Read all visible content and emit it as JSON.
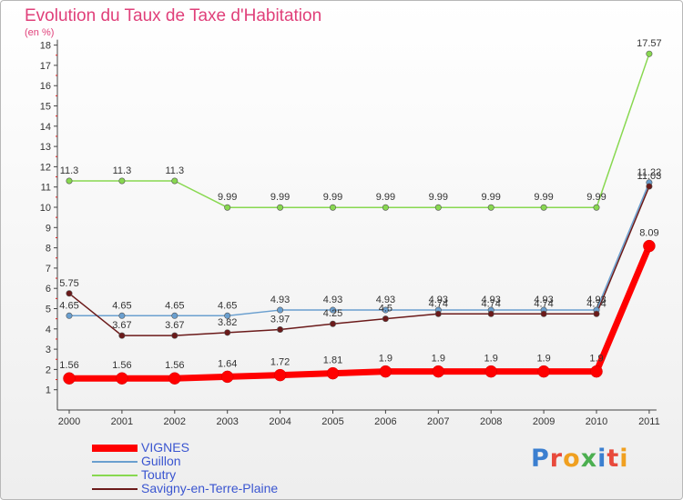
{
  "title": "Evolution du Taux de Taxe d'Habitation",
  "unit_label": "(en %)",
  "logo": {
    "text": "Proxiti",
    "letter_colors": [
      "#3b7fd0",
      "#e84a3c",
      "#f0a020",
      "#4caf50",
      "#3b7fd0",
      "#e84a3c",
      "#f0a020"
    ]
  },
  "chart_data": {
    "type": "line",
    "title": "Evolution du Taux de Taxe d'Habitation",
    "ylabel": "(en %)",
    "xlabel": "",
    "x": [
      "2000",
      "2001",
      "2002",
      "2003",
      "2004",
      "2005",
      "2006",
      "2007",
      "2008",
      "2009",
      "2010",
      "2011"
    ],
    "ylim": [
      0,
      18
    ],
    "yticks": [
      1,
      2,
      3,
      4,
      5,
      6,
      7,
      8,
      9,
      10,
      11,
      12,
      13,
      14,
      15,
      16,
      17,
      18
    ],
    "grid": false,
    "legend_position": "bottom-left",
    "series": [
      {
        "name": "VIGNES",
        "color": "#ff0000",
        "values": [
          1.56,
          1.56,
          1.56,
          1.64,
          1.72,
          1.81,
          1.9,
          1.9,
          1.9,
          1.9,
          1.9,
          8.09
        ],
        "labels": [
          "1.56",
          "1.56",
          "1.56",
          "1.64",
          "1.72",
          "1.81",
          "1.9",
          "1.9",
          "1.9",
          "1.9",
          "1.9",
          "8.09"
        ]
      },
      {
        "name": "Guillon",
        "color": "#6a9fcf",
        "values": [
          4.65,
          4.65,
          4.65,
          4.65,
          4.93,
          4.93,
          4.93,
          4.93,
          4.93,
          4.93,
          4.93,
          11.22
        ],
        "labels": [
          "4.65",
          "4.65",
          "4.65",
          "4.65",
          "4.93",
          "4.93",
          "4.93",
          "4.93",
          "4.93",
          "4.93",
          "4.93",
          "11.22"
        ]
      },
      {
        "name": "Toutry",
        "color": "#88d850",
        "values": [
          11.3,
          11.3,
          11.3,
          9.99,
          9.99,
          9.99,
          9.99,
          9.99,
          9.99,
          9.99,
          9.99,
          17.57
        ],
        "labels": [
          "11.3",
          "11.3",
          "11.3",
          "9.99",
          "9.99",
          "9.99",
          "9.99",
          "9.99",
          "9.99",
          "9.99",
          "9.99",
          "17.57"
        ]
      },
      {
        "name": "Savigny-en-Terre-Plaine",
        "color": "#6b1a1a",
        "values": [
          5.75,
          3.67,
          3.67,
          3.82,
          3.97,
          4.25,
          4.5,
          4.74,
          4.74,
          4.74,
          4.74,
          11.03
        ],
        "labels": [
          "5.75",
          "3.67",
          "3.67",
          "3.82",
          "3.97",
          "4.25",
          "4.5",
          "4.74",
          "4.74",
          "4.74",
          "4.74",
          "11.03"
        ]
      }
    ]
  }
}
